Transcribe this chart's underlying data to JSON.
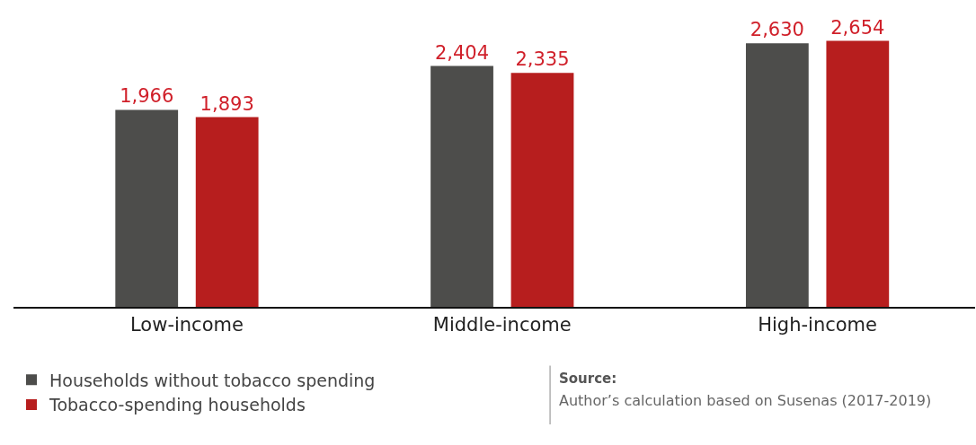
{
  "chart_data": {
    "type": "bar",
    "categories": [
      "Low-income",
      "Middle-income",
      "High-income"
    ],
    "series": [
      {
        "name": "Households without tobacco spending",
        "color": "#4d4d4b",
        "values": [
          1966,
          2404,
          2630
        ],
        "value_labels": [
          "1,966",
          "2,404",
          "2,630"
        ]
      },
      {
        "name": "Tobacco-spending households",
        "color": "#b71e1e",
        "values": [
          1893,
          2335,
          2654
        ],
        "value_labels": [
          "1,893",
          "2,335",
          "2,654"
        ]
      }
    ],
    "grid": false,
    "legend": "bottom left",
    "annotations": [
      "Source:",
      "Author’s calculation based on Susenas (2017-2019)"
    ]
  }
}
